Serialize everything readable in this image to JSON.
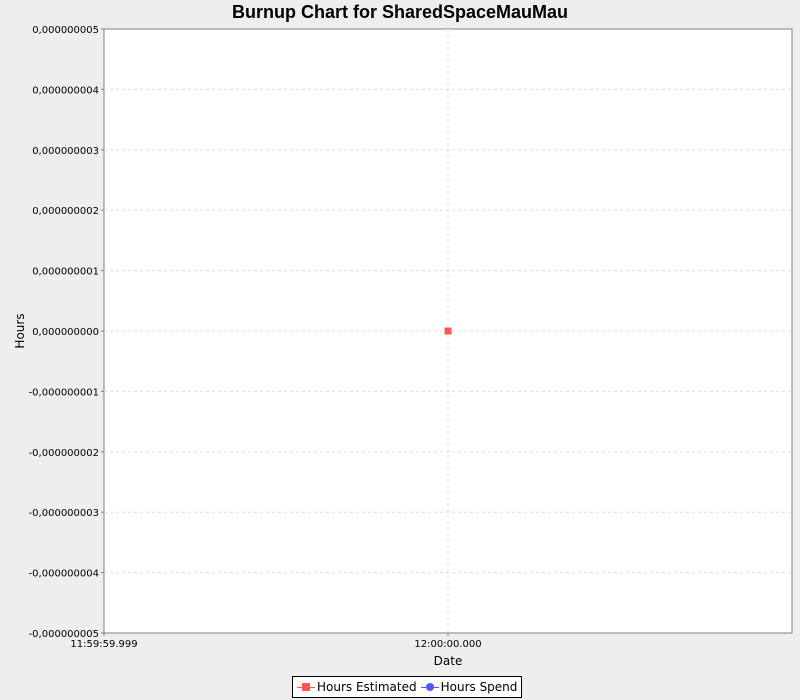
{
  "chart_data": {
    "type": "scatter",
    "title": "Burnup Chart for SharedSpaceMauMau",
    "xlabel": "Date",
    "ylabel": "Hours",
    "x_tick_labels": [
      "11:59:59.999",
      "12:00:00.000"
    ],
    "y_tick_labels": [
      "0,000000005",
      "0,000000004",
      "0,000000003",
      "0,000000002",
      "0,000000001",
      "0,000000000",
      "-0,000000001",
      "-0,000000002",
      "-0,000000003",
      "-0,000000004",
      "-0,000000005"
    ],
    "ylim": [
      -5e-09,
      5e-09
    ],
    "x_range_ms": [
      -1,
      1
    ],
    "grid": true,
    "legend_position": "bottom",
    "series": [
      {
        "name": "Hours Estimated",
        "color": "#ff5555",
        "marker": "square",
        "points": [
          {
            "x_ms": 0,
            "y": 0
          }
        ]
      },
      {
        "name": "Hours Spend",
        "color": "#5555ff",
        "marker": "circle",
        "points": []
      }
    ]
  }
}
